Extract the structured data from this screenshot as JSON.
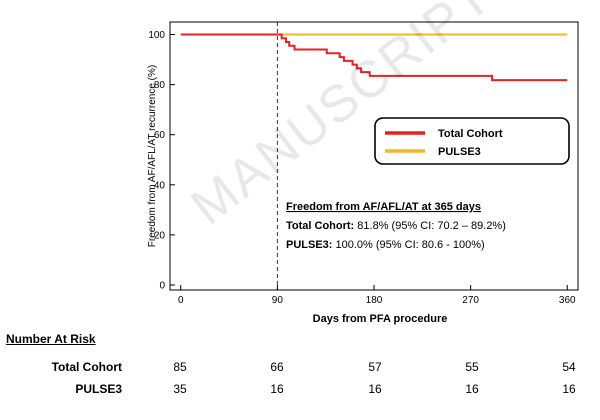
{
  "chart_data": {
    "type": "line",
    "ylabel": "Freedom from AF/AFL/AT recurrence (%)",
    "xlabel": "Days from PFA procedure",
    "xlim": [
      -10,
      370
    ],
    "ylim": [
      -2,
      105
    ],
    "x_ticks": [
      0,
      90,
      180,
      270,
      360
    ],
    "y_ticks": [
      0,
      20,
      40,
      60,
      80,
      100
    ],
    "reference_line_x": 90,
    "legend_position": "center-right",
    "series": [
      {
        "name": "Total Cohort",
        "color": "#e8211f",
        "step": true,
        "x": [
          0,
          90,
          94,
          98,
          101,
          106,
          136,
          148,
          152,
          160,
          164,
          168,
          176,
          182,
          290,
          360
        ],
        "y": [
          100,
          100,
          98.5,
          97,
          95.5,
          94,
          92.5,
          91,
          89.5,
          88,
          86.5,
          85,
          83.5,
          83.5,
          81.8,
          81.8
        ]
      },
      {
        "name": "PULSE3",
        "color": "#f5b724",
        "step": true,
        "x": [
          0,
          360
        ],
        "y": [
          100,
          100
        ]
      }
    ]
  },
  "annotation": {
    "title": "Freedom from AF/AFL/AT at 365 days",
    "line1_label": "Total Cohort:",
    "line1_value": " 81.8% (95% CI: 70.2 – 89.2%)",
    "line2_label": "PULSE3:",
    "line2_value": " 100.0% (95% CI: 80.6 - 100%)"
  },
  "risk_table": {
    "title": "Number At Risk",
    "days": [
      0,
      90,
      180,
      270,
      360
    ],
    "rows": [
      {
        "name": "Total Cohort",
        "values": [
          "85",
          "66",
          "57",
          "55",
          "54"
        ]
      },
      {
        "name": "PULSE3",
        "values": [
          "35",
          "16",
          "16",
          "16",
          "16"
        ]
      }
    ]
  },
  "watermark_text": "MANUSCRIPT"
}
